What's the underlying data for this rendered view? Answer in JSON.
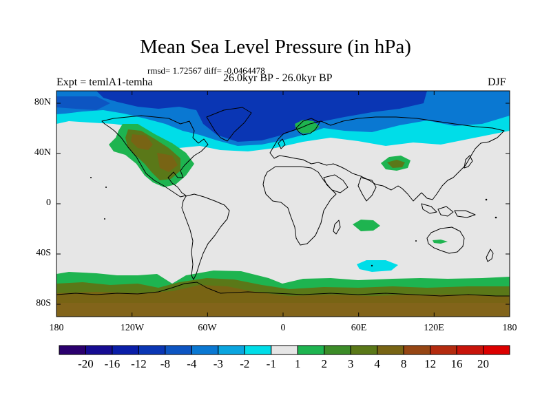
{
  "title": "Mean Sea Level Pressure (in hPa)",
  "stats_line": "rmsd= 1.72567 diff= -0.0464478",
  "period": "26.0kyr BP - 26.0kyr BP",
  "experiment": "Expt = temlA1-temha",
  "season": "DJF",
  "lat_labels": [
    "80N",
    "40N",
    "0",
    "40S",
    "80S"
  ],
  "lon_labels": [
    "180",
    "120W",
    "60W",
    "0",
    "60E",
    "120E",
    "180"
  ],
  "colorbar": {
    "labels": [
      "-20",
      "-16",
      "-12",
      "-8",
      "-4",
      "-3",
      "-2",
      "-1",
      "1",
      "2",
      "3",
      "4",
      "8",
      "12",
      "16",
      "20"
    ],
    "colors": [
      "#2b006e",
      "#160c92",
      "#0a1ea8",
      "#0a36b4",
      "#0d55c2",
      "#0a78d2",
      "#0aa5df",
      "#00dde8",
      "#e6e6e6",
      "#1eb450",
      "#3c8c28",
      "#5a7818",
      "#786414",
      "#964614",
      "#b42b0f",
      "#c8140a",
      "#dc0000"
    ]
  },
  "colors": {
    "neutral": "#e6e6e6",
    "deep_blue": "#0a36b4",
    "blue": "#0a78d2",
    "cyan": "#00dde8",
    "green": "#1eb450",
    "olive": "#5a7818",
    "brown": "#786414"
  }
}
